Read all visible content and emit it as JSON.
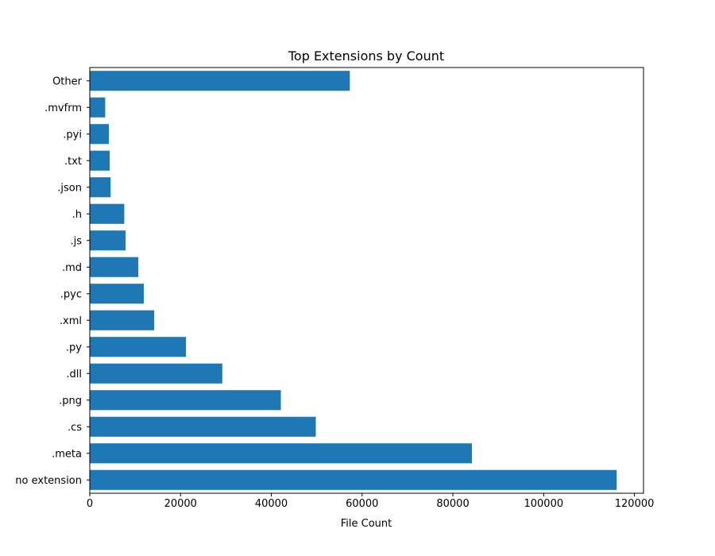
{
  "chart_data": {
    "type": "bar",
    "orientation": "horizontal",
    "title": "Top Extensions by Count",
    "xlabel": "File Count",
    "ylabel": "",
    "xlim": [
      0,
      122000
    ],
    "x_ticks": [
      0,
      20000,
      40000,
      60000,
      80000,
      100000,
      120000
    ],
    "x_tick_labels": [
      "0",
      "20000",
      "40000",
      "60000",
      "80000",
      "100000",
      "120000"
    ],
    "categories": [
      "no extension",
      ".meta",
      ".cs",
      ".png",
      ".dll",
      ".py",
      ".xml",
      ".pyc",
      ".md",
      ".js",
      ".h",
      ".json",
      ".txt",
      ".pyi",
      ".mvfrm",
      "Other"
    ],
    "values": [
      116100,
      84200,
      49800,
      42100,
      29200,
      21200,
      14200,
      11900,
      10700,
      7900,
      7600,
      4600,
      4400,
      4200,
      3400,
      57300
    ],
    "bar_color": "#1f77b4",
    "grid": false,
    "legend": "none"
  }
}
